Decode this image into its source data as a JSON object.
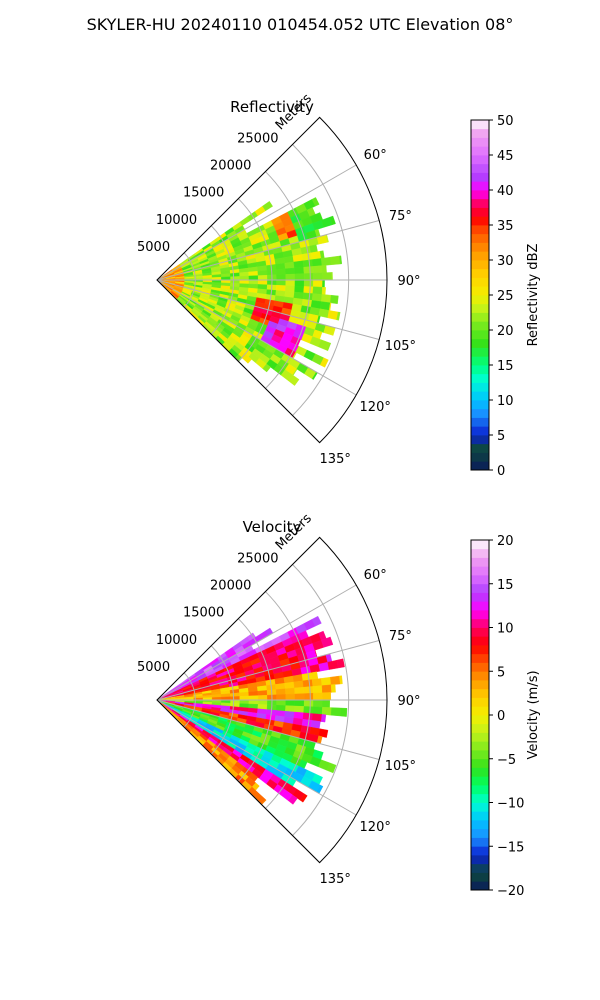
{
  "figure": {
    "title": "SKYLER-HU  20240110  010454.052 UTC Elevation 08°"
  },
  "chart_data": [
    {
      "type": "heatmap",
      "subtype": "polar-sector (radar PPI)",
      "title": "Reflectivity",
      "radial_label": "Meters",
      "radial_ticks": [
        5000,
        10000,
        15000,
        20000,
        25000
      ],
      "radial_tick_labels": [
        "5000",
        "10000",
        "15000",
        "20000",
        "25000"
      ],
      "radial_max": 30000,
      "angle_ticks": [
        60,
        75,
        90,
        105,
        120,
        135
      ],
      "angle_tick_labels": [
        "60°",
        "75°",
        "90°",
        "105°",
        "120°",
        "135°"
      ],
      "angle_range": [
        45,
        135
      ],
      "grid": true,
      "data_extent": {
        "angle_range": [
          55,
          135
        ],
        "max_range_m": 25000
      },
      "colorbar": {
        "label": "Reflectivity dBZ",
        "range": [
          0,
          50
        ],
        "ticks": [
          0,
          5,
          10,
          15,
          20,
          25,
          30,
          35,
          40,
          45,
          50
        ],
        "tick_labels": [
          "0",
          "5",
          "10",
          "15",
          "20",
          "25",
          "30",
          "35",
          "40",
          "45",
          "50"
        ],
        "colormap": [
          [
            0,
            "#0a1a5c"
          ],
          [
            3,
            "#0d4a3c"
          ],
          [
            5,
            "#0a1fd0"
          ],
          [
            8,
            "#1a8fff"
          ],
          [
            10,
            "#00c4ff"
          ],
          [
            13,
            "#00ffd0"
          ],
          [
            15,
            "#00ff80"
          ],
          [
            18,
            "#33e21a"
          ],
          [
            21,
            "#7dea1e"
          ],
          [
            23,
            "#c2f21a"
          ],
          [
            25,
            "#f4ef00"
          ],
          [
            28,
            "#ffcf00"
          ],
          [
            31,
            "#ff9a00"
          ],
          [
            34,
            "#ff5500"
          ],
          [
            36,
            "#ff0000"
          ],
          [
            38,
            "#ff0060"
          ],
          [
            40,
            "#ff00ff"
          ],
          [
            42,
            "#b040ff"
          ],
          [
            45,
            "#e070ff"
          ],
          [
            48,
            "#f0a0f0"
          ],
          [
            50,
            "#ffffff"
          ]
        ]
      },
      "features": [
        {
          "angle_range": [
            85,
            135
          ],
          "range_m": [
            0,
            25000
          ],
          "value_dbz": 24
        },
        {
          "angle_range": [
            60,
            75
          ],
          "range_m": [
            18000,
            25000
          ],
          "value_dbz": 20
        },
        {
          "angle_range": [
            100,
            110
          ],
          "range_m": [
            12000,
            18000
          ],
          "value_dbz": 38
        },
        {
          "angle_range": [
            108,
            118
          ],
          "range_m": [
            15000,
            20000
          ],
          "value_dbz": 42
        },
        {
          "angle_range": [
            62,
            70
          ],
          "range_m": [
            16000,
            21000
          ],
          "value_dbz": 34
        }
      ]
    },
    {
      "type": "heatmap",
      "subtype": "polar-sector (radar PPI)",
      "title": "Velocity",
      "radial_label": "Meters",
      "radial_ticks": [
        5000,
        10000,
        15000,
        20000,
        25000
      ],
      "radial_tick_labels": [
        "5000",
        "10000",
        "15000",
        "20000",
        "25000"
      ],
      "radial_max": 30000,
      "angle_ticks": [
        60,
        75,
        90,
        105,
        120,
        135
      ],
      "angle_tick_labels": [
        "60°",
        "75°",
        "90°",
        "105°",
        "120°",
        "135°"
      ],
      "angle_range": [
        45,
        135
      ],
      "grid": true,
      "data_extent": {
        "angle_range": [
          55,
          135
        ],
        "max_range_m": 25000
      },
      "colorbar": {
        "label": "Velocity (m/s)",
        "range": [
          -20,
          20
        ],
        "ticks": [
          -20,
          -15,
          -10,
          -5,
          0,
          5,
          10,
          15,
          20
        ],
        "tick_labels": [
          "−20",
          "−15",
          "−10",
          "−5",
          "0",
          "5",
          "10",
          "15",
          "20"
        ],
        "colormap": [
          [
            -20,
            "#0a1a5c"
          ],
          [
            -18,
            "#0d4a3c"
          ],
          [
            -16,
            "#0a1fd0"
          ],
          [
            -14,
            "#1a8fff"
          ],
          [
            -12,
            "#00c4ff"
          ],
          [
            -10,
            "#00ffd0"
          ],
          [
            -8,
            "#00ff60"
          ],
          [
            -6,
            "#33e21a"
          ],
          [
            -4,
            "#7dea1e"
          ],
          [
            -2,
            "#c2f21a"
          ],
          [
            0,
            "#f4ef00"
          ],
          [
            2,
            "#ffcf00"
          ],
          [
            4,
            "#ff9a00"
          ],
          [
            6,
            "#ff5500"
          ],
          [
            8,
            "#ff0000"
          ],
          [
            10,
            "#ff0060"
          ],
          [
            12,
            "#ff00ff"
          ],
          [
            14,
            "#b040ff"
          ],
          [
            16,
            "#e070ff"
          ],
          [
            18,
            "#f0a0f0"
          ],
          [
            20,
            "#ffffff"
          ]
        ]
      },
      "features": [
        {
          "angle_range": [
            55,
            65
          ],
          "range_m": [
            15000,
            25000
          ],
          "value_ms": 14
        },
        {
          "angle_range": [
            65,
            80
          ],
          "range_m": [
            8000,
            25000
          ],
          "value_ms": 9
        },
        {
          "angle_range": [
            80,
            88
          ],
          "range_m": [
            0,
            25000
          ],
          "value_ms": 3
        },
        {
          "angle_range": [
            88,
            93
          ],
          "range_m": [
            0,
            20000
          ],
          "value_ms": -4
        },
        {
          "angle_range": [
            93,
            98
          ],
          "range_m": [
            0,
            25000
          ],
          "value_ms": 12
        },
        {
          "angle_range": [
            98,
            103
          ],
          "range_m": [
            0,
            25000
          ],
          "value_ms": 8
        },
        {
          "angle_range": [
            103,
            115
          ],
          "range_m": [
            0,
            25000
          ],
          "value_ms": -6
        },
        {
          "angle_range": [
            115,
            122
          ],
          "range_m": [
            0,
            22000
          ],
          "value_ms": -11
        },
        {
          "angle_range": [
            122,
            130
          ],
          "range_m": [
            0,
            25000
          ],
          "value_ms": 10
        }
      ]
    }
  ]
}
